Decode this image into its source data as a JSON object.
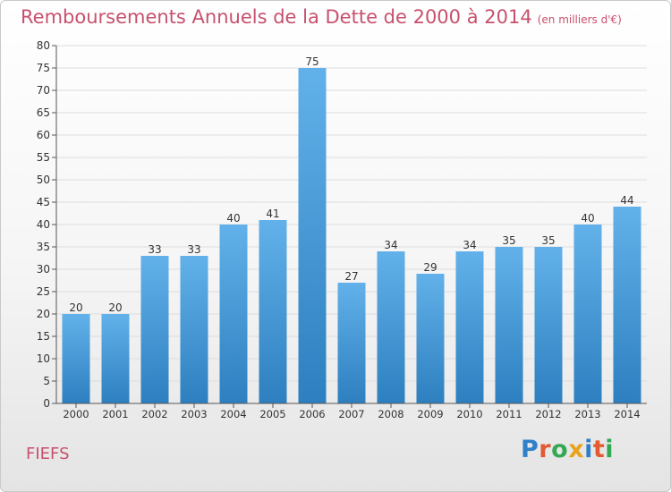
{
  "title": "Remboursements Annuels de la Dette de 2000 à 2014",
  "subtitle": "(en milliers d'€)",
  "place": "FIEFS",
  "logo": {
    "text": "Proxiti",
    "letters": [
      {
        "ch": "P",
        "color": "#2f80c9"
      },
      {
        "ch": "r",
        "color": "#e25b33"
      },
      {
        "ch": "o",
        "color": "#35a853"
      },
      {
        "ch": "x",
        "color": "#e8a21c"
      },
      {
        "ch": "i",
        "color": "#2f80c9"
      },
      {
        "ch": "t",
        "color": "#e25b33"
      },
      {
        "ch": "i",
        "color": "#35a853"
      }
    ]
  },
  "colors": {
    "title": "#c8506e",
    "bar_top": "#62b1ea",
    "bar_bottom": "#2d7fbf",
    "axis": "#555555",
    "grid": "#dddddd"
  },
  "chart_data": {
    "type": "bar",
    "title": "Remboursements Annuels de la Dette de 2000 à 2014",
    "subtitle": "(en milliers d'€)",
    "categories": [
      "2000",
      "2001",
      "2002",
      "2003",
      "2004",
      "2005",
      "2006",
      "2007",
      "2008",
      "2009",
      "2010",
      "2011",
      "2012",
      "2013",
      "2014"
    ],
    "values": [
      20,
      20,
      33,
      33,
      40,
      41,
      75,
      27,
      34,
      29,
      34,
      35,
      35,
      40,
      44
    ],
    "ylim": [
      0,
      80
    ],
    "yticks": [
      0,
      5,
      10,
      15,
      20,
      25,
      30,
      35,
      40,
      45,
      50,
      55,
      60,
      65,
      70,
      75,
      80
    ],
    "grid": true,
    "data_labels": true
  }
}
